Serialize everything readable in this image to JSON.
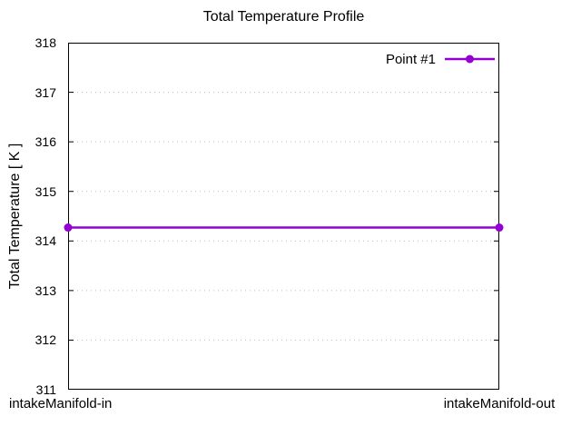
{
  "chart_data": {
    "type": "line",
    "title": "Total Temperature Profile",
    "xlabel": "",
    "ylabel": "Total Temperature [ K ]",
    "categories": [
      "intakeManifold-in",
      "intakeManifold-out"
    ],
    "series": [
      {
        "name": "Point #1",
        "values": [
          314.27,
          314.27
        ],
        "color": "#9400d3",
        "marker": "filled-circle",
        "line_width": 2.5,
        "marker_radius": 4.5
      }
    ],
    "ylim": [
      311,
      318
    ],
    "yticks": [
      311,
      312,
      313,
      314,
      315,
      316,
      317,
      318
    ],
    "ytick_step": 1,
    "grid": "horizontal-dotted-at-yticks",
    "legend_position": "top-right-inside",
    "colors": {
      "background": "#ffffff",
      "axis": "#000000",
      "grid": "#bdbdbd",
      "text": "#000000"
    }
  }
}
